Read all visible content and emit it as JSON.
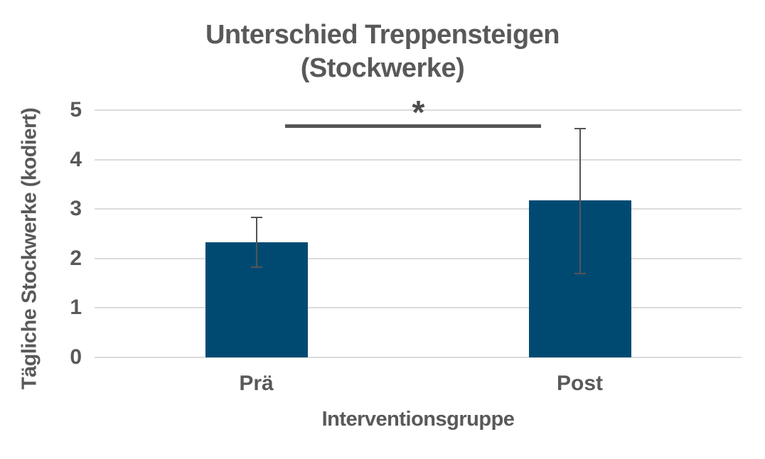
{
  "chart_data": {
    "type": "bar",
    "title": "Unterschied Treppensteigen (Stockwerke)",
    "title_lines": [
      "Unterschied Treppensteigen",
      "(Stockwerke)"
    ],
    "xlabel": "Interventionsgruppe",
    "ylabel": "Tägliche Stockwerke (kodiert)",
    "categories": [
      "Prä",
      "Post"
    ],
    "values": [
      2.33,
      3.17
    ],
    "error_bars": {
      "upper": [
        2.83,
        4.63
      ],
      "lower": [
        1.83,
        1.7
      ]
    },
    "ylim": [
      0,
      5
    ],
    "yticks": [
      0,
      1,
      2,
      3,
      4,
      5
    ],
    "grid": "horizontal-gridlines-only",
    "legend": "none",
    "significance": {
      "label": "*",
      "pair": [
        "Prä",
        "Post"
      ],
      "line_y": 4.68
    },
    "colors": {
      "bar": "#004a72",
      "error": "#555555",
      "significance_line": "#555555",
      "text": "#595959",
      "gridline": "#dcdcdc",
      "background": "#ffffff"
    }
  }
}
